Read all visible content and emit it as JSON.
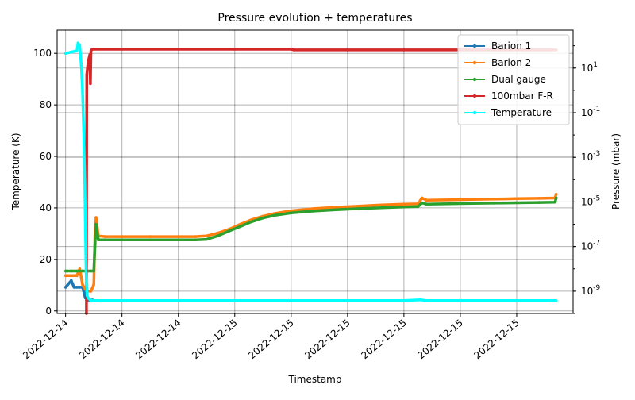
{
  "chart_data": {
    "type": "line",
    "title": "Pressure evolution + temperatures",
    "xlabel": "Timestamp",
    "ylabel_left": "Temperature (K)",
    "ylabel_right": "Pressure (mbar)",
    "x_tick_labels": [
      "2022-12-14",
      "2022-12-14",
      "2022-12-14",
      "2022-12-15",
      "2022-12-15",
      "2022-12-15",
      "2022-12-15",
      "2022-12-15",
      "2022-12-15"
    ],
    "x_range": [
      -1.5,
      90
    ],
    "ylim_left": [
      -1,
      109
    ],
    "left_ticks": [
      0,
      20,
      40,
      60,
      80,
      100
    ],
    "right_scale": "log",
    "ylim_right": [
      1e-10,
      500
    ],
    "right_tick_labels": [
      "10^1",
      "10^-1",
      "10^-3",
      "10^-5",
      "10^-7",
      "10^-9"
    ],
    "right_tick_exponents": [
      1,
      -1,
      -3,
      -5,
      -7,
      -9
    ],
    "grid": true,
    "legend_position": "top-right",
    "series": [
      {
        "name": "Barion 1",
        "axis": "right",
        "color": "#1f77b4",
        "points": [
          [
            0,
            1.5e-09
          ],
          [
            1,
            3e-09
          ],
          [
            1.5,
            1.5e-09
          ],
          [
            2,
            1.5e-09
          ],
          [
            2.5,
            1.5e-09
          ],
          [
            3,
            1.5e-09
          ],
          [
            3.5,
            5e-10
          ],
          [
            3.9,
            4e-10
          ],
          [
            4.3,
            4e-10
          ],
          [
            4.8,
            4e-10
          ]
        ]
      },
      {
        "name": "Barion 2",
        "axis": "right",
        "color": "#ff7f0e",
        "points": [
          [
            0,
            5e-09
          ],
          [
            1,
            5e-09
          ],
          [
            2,
            5e-09
          ],
          [
            2.5,
            1e-08
          ],
          [
            3,
            2e-09
          ],
          [
            3.5,
            1.2e-09
          ],
          [
            4,
            1e-09
          ],
          [
            4.5,
            1e-09
          ],
          [
            5,
            2e-09
          ],
          [
            5.2,
            3e-07
          ],
          [
            5.4,
            2e-06
          ],
          [
            5.8,
            3e-07
          ],
          [
            7,
            2.8e-07
          ],
          [
            10,
            2.8e-07
          ],
          [
            15,
            2.8e-07
          ],
          [
            20,
            2.8e-07
          ],
          [
            23,
            2.8e-07
          ],
          [
            25,
            3e-07
          ],
          [
            27,
            4e-07
          ],
          [
            29,
            6e-07
          ],
          [
            31,
            1e-06
          ],
          [
            33,
            1.6e-06
          ],
          [
            35,
            2.3e-06
          ],
          [
            37,
            3e-06
          ],
          [
            40,
            4e-06
          ],
          [
            44,
            5e-06
          ],
          [
            48,
            5.8e-06
          ],
          [
            52,
            6.5e-06
          ],
          [
            56,
            7.3e-06
          ],
          [
            60,
            8e-06
          ],
          [
            62.5,
            8.2e-06
          ],
          [
            63.2,
            1.5e-05
          ],
          [
            64,
            1.2e-05
          ],
          [
            68,
            1.25e-05
          ],
          [
            72,
            1.3e-05
          ],
          [
            76,
            1.35e-05
          ],
          [
            80,
            1.4e-05
          ],
          [
            84,
            1.45e-05
          ],
          [
            86.8,
            1.5e-05
          ],
          [
            87,
            2.2e-05
          ]
        ]
      },
      {
        "name": "Dual gauge",
        "axis": "right",
        "color": "#2ca02c",
        "points": [
          [
            0,
            8e-09
          ],
          [
            1,
            8e-09
          ],
          [
            2,
            8e-09
          ],
          [
            3,
            8e-09
          ],
          [
            4,
            8e-09
          ],
          [
            4.5,
            8e-09
          ],
          [
            5,
            8e-09
          ],
          [
            5.2,
            1e-07
          ],
          [
            5.4,
            1e-06
          ],
          [
            5.8,
            2e-07
          ],
          [
            7,
            2e-07
          ],
          [
            10,
            2e-07
          ],
          [
            15,
            2e-07
          ],
          [
            20,
            2e-07
          ],
          [
            23,
            2e-07
          ],
          [
            25,
            2.1e-07
          ],
          [
            27,
            3e-07
          ],
          [
            29,
            5e-07
          ],
          [
            31,
            8e-07
          ],
          [
            33,
            1.3e-06
          ],
          [
            35,
            1.9e-06
          ],
          [
            37,
            2.5e-06
          ],
          [
            40,
            3.2e-06
          ],
          [
            44,
            3.9e-06
          ],
          [
            48,
            4.5e-06
          ],
          [
            52,
            5e-06
          ],
          [
            56,
            5.5e-06
          ],
          [
            60,
            6e-06
          ],
          [
            62.5,
            6.2e-06
          ],
          [
            63.2,
            9e-06
          ],
          [
            64,
            8e-06
          ],
          [
            68,
            8.3e-06
          ],
          [
            72,
            8.6e-06
          ],
          [
            76,
            8.9e-06
          ],
          [
            80,
            9.2e-06
          ],
          [
            84,
            9.5e-06
          ],
          [
            86.8,
            9.8e-06
          ],
          [
            87,
            1.5e-05
          ]
        ]
      },
      {
        "name": "100mbar F-R",
        "axis": "right",
        "color": "#d62728",
        "points": [
          [
            3.7,
            1e-10
          ],
          [
            3.75,
            5
          ],
          [
            4.0,
            20
          ],
          [
            4.3,
            40
          ],
          [
            4.4,
            2
          ],
          [
            4.5,
            60
          ],
          [
            4.7,
            70
          ],
          [
            5,
            70
          ],
          [
            10,
            70
          ],
          [
            20,
            70
          ],
          [
            30,
            70
          ],
          [
            40,
            70
          ],
          [
            40.5,
            65
          ],
          [
            50,
            65
          ],
          [
            60,
            65
          ],
          [
            70,
            65
          ],
          [
            80,
            65
          ],
          [
            87,
            65
          ]
        ]
      },
      {
        "name": "Temperature",
        "axis": "left",
        "color": "#00ffff",
        "points": [
          [
            0,
            100
          ],
          [
            1,
            100.5
          ],
          [
            2,
            101
          ],
          [
            2.2,
            104
          ],
          [
            2.5,
            103
          ],
          [
            2.8,
            95
          ],
          [
            3,
            85
          ],
          [
            3.2,
            70
          ],
          [
            3.4,
            50
          ],
          [
            3.5,
            35
          ],
          [
            3.6,
            20
          ],
          [
            3.7,
            10
          ],
          [
            3.8,
            6
          ],
          [
            4,
            5
          ],
          [
            4.5,
            4
          ],
          [
            5,
            4
          ],
          [
            10,
            4
          ],
          [
            20,
            4
          ],
          [
            30,
            4
          ],
          [
            40,
            4
          ],
          [
            50,
            4
          ],
          [
            60,
            4
          ],
          [
            63,
            4.3
          ],
          [
            64,
            4
          ],
          [
            70,
            4
          ],
          [
            80,
            4
          ],
          [
            87,
            4
          ]
        ]
      }
    ]
  }
}
